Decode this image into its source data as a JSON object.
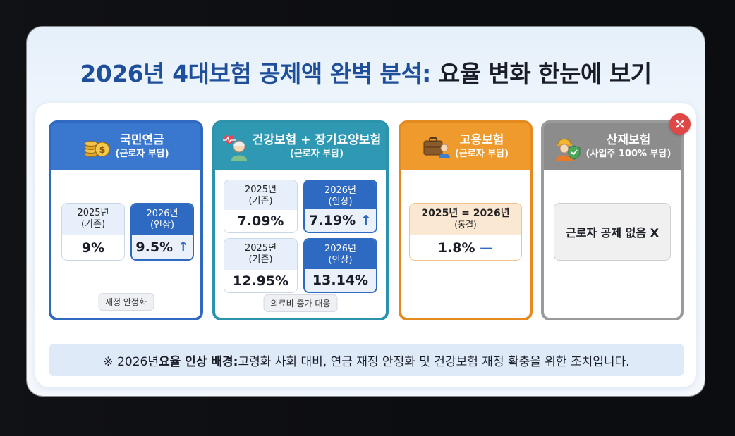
{
  "title": {
    "part1": "2026년 4대보험 공제액 완벽 분석",
    "colon": ":",
    "part2": " 요율 변화 한눈에 보기"
  },
  "cards": {
    "pension": {
      "title": "국민연금",
      "subtitle": "(근로자 부담)",
      "icon": "coins-icon",
      "old": {
        "year": "2025년",
        "tag": "(기존)",
        "value": "9%"
      },
      "new": {
        "year": "2026년",
        "tag": "(인상)",
        "value": "9.5%"
      },
      "footer": "재정 안정화"
    },
    "health": {
      "title": "건강보험 + 장기요양보험",
      "subtitle": "(근로자 부담)",
      "icon": "elderly-heart-icon",
      "row1_old": {
        "year": "2025년",
        "tag": "(기존)",
        "value": "7.09%"
      },
      "row1_new": {
        "year": "2026년",
        "tag": "(인상)",
        "value": "7.19%"
      },
      "row2_old": {
        "year": "2025년",
        "tag": "(기존)",
        "value": "12.95%"
      },
      "row2_new": {
        "year": "2026년",
        "tag": "(인상)",
        "value": "13.14%"
      },
      "footer": "의료비 증가 대응"
    },
    "employment": {
      "title": "고용보험",
      "subtitle": "(근로자 부담)",
      "icon": "briefcase-person-icon",
      "box": {
        "year": "2025년 = 2026년",
        "tag": "(동결)",
        "value": "1.8%"
      }
    },
    "industrial": {
      "title": "산재보험",
      "subtitle": "(사업주 100% 부담)",
      "icon": "worker-shield-icon",
      "message": "근로자 공제 없음 X"
    }
  },
  "note": {
    "prefix": "※ 2026년 ",
    "bold": "요율 인상 배경:",
    "rest": " 고령화 사회 대비, 연금 재정 안정화 및 건강보험 재정 확충을 위한 조치입니다."
  },
  "colors": {
    "pension": "#3a78cf",
    "health": "#2f99b4",
    "employment": "#ef9a2d",
    "industrial": "#8c8c8c",
    "increase_red": "#d9343a"
  }
}
